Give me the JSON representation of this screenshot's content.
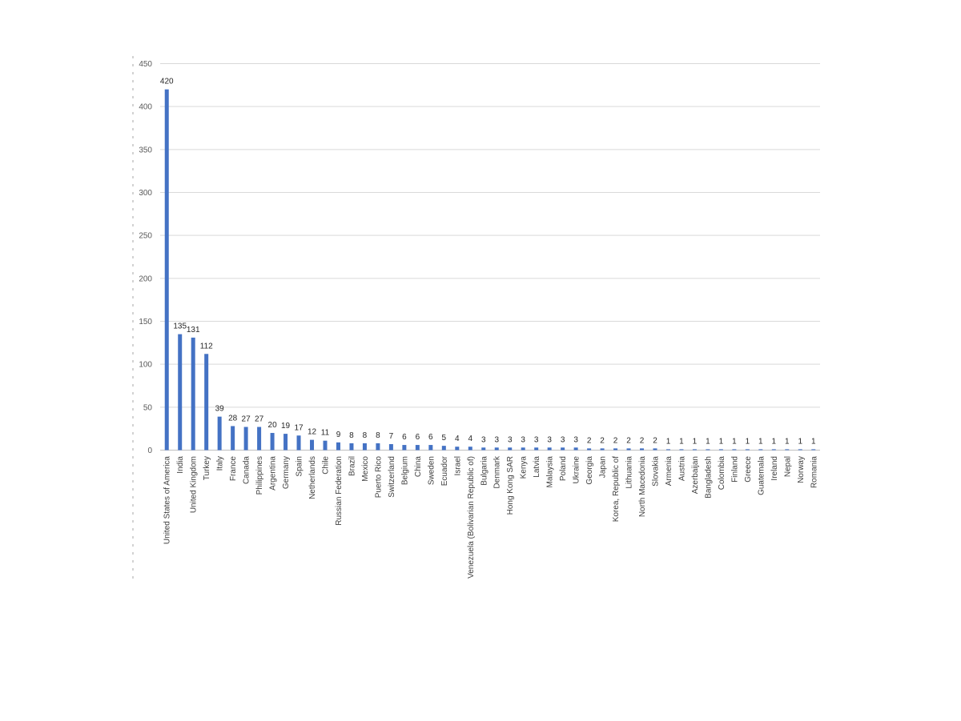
{
  "chart_data": {
    "type": "bar",
    "title": "",
    "xlabel": "",
    "ylabel": "",
    "ylim": [
      0,
      450
    ],
    "y_ticks": [
      0,
      50,
      100,
      150,
      200,
      250,
      300,
      350,
      400,
      450
    ],
    "grid": true,
    "legend": "none",
    "data_labels": true,
    "bar_color": "#4472c4",
    "categories": [
      "United States of America",
      "India",
      "United Kingdom",
      "Turkey",
      "Italy",
      "France",
      "Canada",
      "Philippines",
      "Argentina",
      "Germany",
      "Spain",
      "Netherlands",
      "Chile",
      "Russian Federation",
      "Brazil",
      "Mexico",
      "Puerto Rico",
      "Switzerland",
      "Belgium",
      "China",
      "Sweden",
      "Ecuador",
      "Israel",
      "Venezuela (Bolivarian Republic of)",
      "Bulgaria",
      "Denmark",
      "Hong Kong SAR",
      "Kenya",
      "Latvia",
      "Malaysia",
      "Poland",
      "Ukraine",
      "Georgia",
      "Japan",
      "Korea, Republic of",
      "Lithuania",
      "North Macedonia",
      "Slovakia",
      "Armenia",
      "Austria",
      "Azerbaijan",
      "Bangladesh",
      "Colombia",
      "Finland",
      "Greece",
      "Guatemala",
      "Ireland",
      "Nepal",
      "Norway",
      "Romania"
    ],
    "values": [
      420,
      135,
      131,
      112,
      39,
      28,
      27,
      27,
      20,
      19,
      17,
      12,
      11,
      9,
      8,
      8,
      8,
      7,
      6,
      6,
      6,
      5,
      4,
      4,
      3,
      3,
      3,
      3,
      3,
      3,
      3,
      3,
      2,
      2,
      2,
      2,
      2,
      2,
      1,
      1,
      1,
      1,
      1,
      1,
      1,
      1,
      1,
      1,
      1,
      1
    ]
  }
}
